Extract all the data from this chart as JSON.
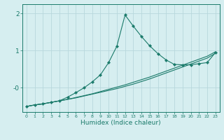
{
  "xlabel": "Humidex (Indice chaleur)",
  "bg_color": "#d6eef0",
  "grid_color": "#b8d8dc",
  "line_color": "#1a7a6a",
  "xlim": [
    -0.5,
    23.5
  ],
  "ylim": [
    -0.65,
    2.25
  ],
  "xticks": [
    0,
    1,
    2,
    3,
    4,
    5,
    6,
    7,
    8,
    9,
    10,
    11,
    12,
    13,
    14,
    15,
    16,
    17,
    18,
    19,
    20,
    21,
    22,
    23
  ],
  "yticks": [
    0.0,
    1.0,
    2.0
  ],
  "ytick_labels": [
    "-0",
    "1",
    "2"
  ],
  "line1_x": [
    0,
    1,
    2,
    3,
    4,
    5,
    6,
    7,
    8,
    9,
    10,
    11,
    12,
    13,
    14,
    15,
    16,
    17,
    18,
    19,
    20,
    21,
    22,
    23
  ],
  "line1_y": [
    -0.5,
    -0.46,
    -0.43,
    -0.39,
    -0.35,
    -0.31,
    -0.27,
    -0.22,
    -0.17,
    -0.12,
    -0.07,
    -0.02,
    0.04,
    0.1,
    0.17,
    0.24,
    0.32,
    0.4,
    0.48,
    0.56,
    0.64,
    0.72,
    0.8,
    0.93
  ],
  "line2_x": [
    0,
    1,
    2,
    3,
    4,
    5,
    6,
    7,
    8,
    9,
    10,
    11,
    12,
    13,
    14,
    15,
    16,
    17,
    18,
    19,
    20,
    21,
    22,
    23
  ],
  "line2_y": [
    -0.5,
    -0.46,
    -0.43,
    -0.39,
    -0.35,
    -0.31,
    -0.26,
    -0.21,
    -0.16,
    -0.1,
    -0.04,
    0.02,
    0.08,
    0.15,
    0.22,
    0.29,
    0.37,
    0.45,
    0.53,
    0.61,
    0.69,
    0.77,
    0.85,
    0.97
  ],
  "line3_x": [
    0,
    1,
    2,
    3,
    4,
    5,
    6,
    7,
    8,
    9,
    10,
    11,
    12,
    13,
    14,
    15,
    16,
    17,
    18,
    19,
    20,
    21,
    22,
    23
  ],
  "line3_y": [
    -0.5,
    -0.46,
    -0.43,
    -0.39,
    -0.35,
    -0.25,
    -0.13,
    0.0,
    0.16,
    0.35,
    0.68,
    1.12,
    1.96,
    1.66,
    1.38,
    1.13,
    0.92,
    0.75,
    0.63,
    0.62,
    0.62,
    0.65,
    0.68,
    0.95
  ]
}
